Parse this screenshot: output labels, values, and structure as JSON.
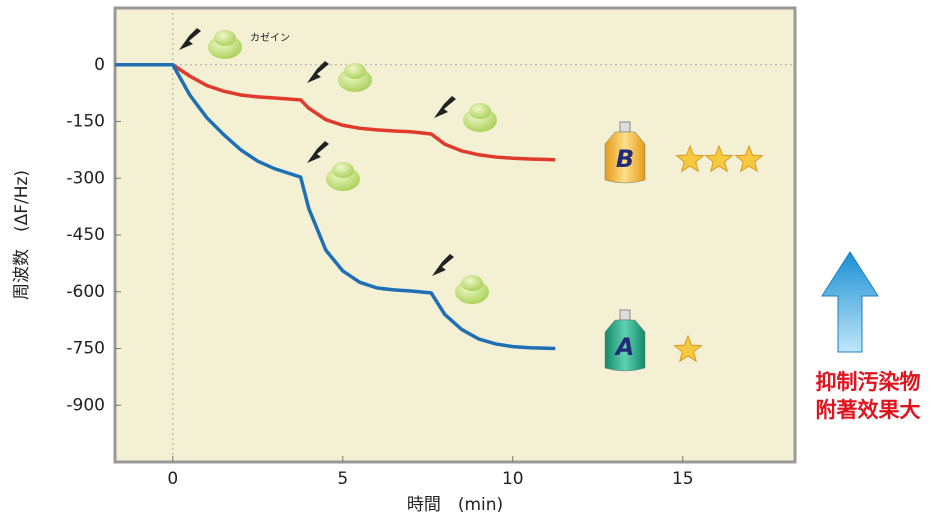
{
  "chart_data": {
    "type": "line",
    "x_label": "時間　(min)",
    "y_label": "周波数　(ΔF/Hz)",
    "annotation": "カゼイン",
    "side_note": [
      "抑制汚染物",
      "附著效果大"
    ],
    "x": [
      -1.7,
      0,
      0.5,
      1,
      1.5,
      2,
      2.5,
      3,
      3.76,
      4,
      4.5,
      5,
      5.5,
      6,
      6.5,
      7,
      7.6,
      8,
      8.5,
      9,
      9.5,
      10,
      10.5,
      11.25
    ],
    "series": [
      {
        "name": "B",
        "color": "#e03a2c",
        "values": [
          0,
          0,
          -30,
          -55,
          -70,
          -80,
          -85,
          -88,
          -93,
          -115,
          -145,
          -160,
          -168,
          -172,
          -175,
          -177,
          -183,
          -210,
          -228,
          -238,
          -244,
          -247,
          -249,
          -251
        ]
      },
      {
        "name": "A",
        "color": "#1f6fb5",
        "values": [
          0,
          0,
          -80,
          -140,
          -185,
          -225,
          -255,
          -275,
          -297,
          -380,
          -490,
          -545,
          -575,
          -590,
          -595,
          -598,
          -603,
          -660,
          -700,
          -725,
          -738,
          -745,
          -748,
          -750
        ]
      }
    ],
    "xlim": [
      -1.7,
      18.3
    ],
    "ylim": [
      -1050,
      150
    ],
    "xticks": [
      0,
      5,
      10,
      15
    ],
    "yticks": [
      0,
      -150,
      -300,
      -450,
      -600,
      -750,
      -900
    ],
    "background": "#f3f0d4"
  }
}
